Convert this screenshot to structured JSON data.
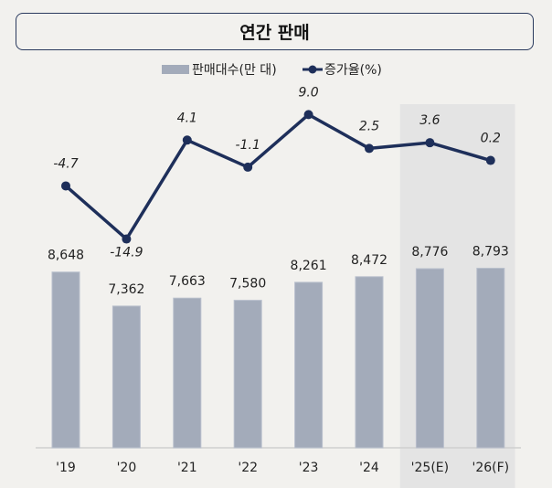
{
  "chart_data": {
    "type": "bar+line",
    "title": "연간 판매",
    "categories": [
      "'19",
      "'20",
      "'21",
      "'22",
      "'23",
      "'24",
      "'25(E)",
      "'26(F)"
    ],
    "series": [
      {
        "name": "판매대수(만 대)",
        "type": "bar",
        "axis": "left",
        "values": [
          8648,
          7362,
          7663,
          7580,
          8261,
          8472,
          8776,
          8793
        ],
        "labels": [
          "8,648",
          "7,362",
          "7,663",
          "7,580",
          "8,261",
          "8,472",
          "8,776",
          "8,793"
        ]
      },
      {
        "name": "증가율(%)",
        "type": "line",
        "axis": "right",
        "values": [
          -4.7,
          -14.9,
          4.1,
          -1.1,
          9.0,
          2.5,
          3.6,
          0.2
        ],
        "labels": [
          "-4.7",
          "-14.9",
          "4.1",
          "-1.1",
          "9.0",
          "2.5",
          "3.6",
          "0.2"
        ]
      }
    ],
    "bar_ylim": [
      2000,
      15000
    ],
    "line_ylim": [
      -55,
      11
    ],
    "highlighted_categories": [
      "'25(E)",
      "'26(F)"
    ],
    "legend_position": "top-center",
    "grid": false,
    "colors": {
      "bar": "#a3abba",
      "line": "#1e2f5a",
      "highlight": "#e4e4e4",
      "background": "#f2f1ee"
    }
  }
}
